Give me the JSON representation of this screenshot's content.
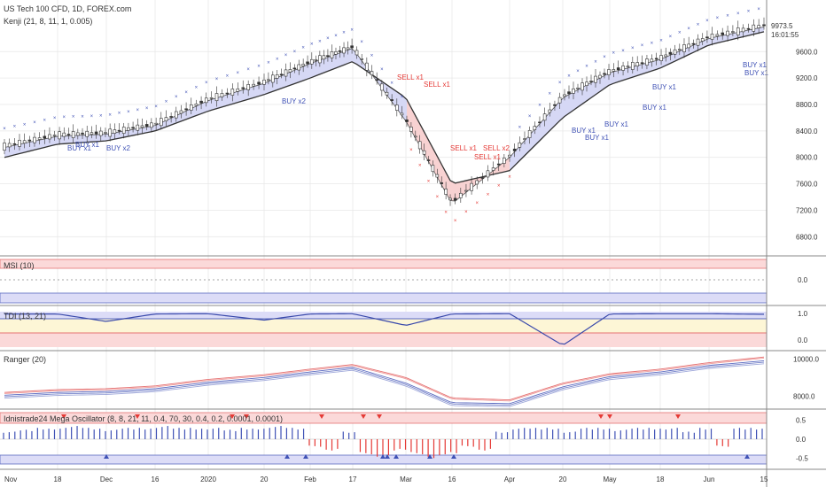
{
  "header": {
    "title": "US Tech 100 CFD, 1D, FOREX.com",
    "indicator": "Kenji (21, 8, 11, 1, 0.005)"
  },
  "price_axis": {
    "last_price": "9973.5",
    "countdown": "16:01:55",
    "last_color": "#3f51b5"
  },
  "colors": {
    "up_marker": "#3f51b5",
    "down_marker": "#e53935",
    "band_fill_up": "#d6d8f5",
    "band_fill_down": "#f8d2d2",
    "grid": "#e8e8e8",
    "separator": "#888888"
  },
  "chart_data": [
    {
      "type": "line",
      "panel": "price",
      "title": "US Tech 100 CFD, 1D, FOREX.com",
      "indicator": "Kenji (21, 8, 11, 1, 0.005)",
      "x": [
        "Nov 1",
        "Nov 18",
        "Dec 2",
        "Dec 16",
        "2020 Jan 2",
        "Jan 20",
        "Feb 3",
        "Feb 17",
        "Mar 2",
        "Mar 16",
        "Apr 1",
        "Apr 20",
        "May 1",
        "May 18",
        "Jun 1",
        "Jun 15"
      ],
      "ylim": [
        6550,
        10300
      ],
      "yticks": [
        6800,
        7200,
        7600,
        8000,
        8400,
        8800,
        9200,
        9600
      ],
      "series": [
        {
          "values": [
            8150,
            8320,
            8350,
            8480,
            8860,
            9120,
            9420,
            9650,
            8550,
            7300,
            8000,
            8900,
            9280,
            9480,
            9800,
            9973.5
          ]
        },
        {
          "values": [
            8000,
            8200,
            8250,
            8400,
            8700,
            8950,
            9200,
            9450,
            8900,
            7600,
            7800,
            8600,
            9100,
            9350,
            9700,
            9900
          ]
        }
      ],
      "annotations": [
        "BUY x1",
        "BUY x1",
        "BUY x2",
        "BUY x2",
        "SELL x1",
        "SELL x1",
        "SELL x1",
        "SELL x2",
        "SELL x1",
        "BUY x1",
        "BUY x1",
        "BUY x1",
        "BUY x1",
        "BUY x1",
        "BUY x1",
        "BUY x1"
      ]
    },
    {
      "type": "line",
      "panel": "msi",
      "title": "MSI (10)",
      "ylim": [
        -1.2,
        1.2
      ],
      "yticks": [
        0.0
      ]
    },
    {
      "type": "line",
      "panel": "tdi",
      "title": "TDI (13, 21)",
      "ylim": [
        -0.3,
        1.2
      ],
      "yticks": [
        1.0,
        0.0
      ],
      "series": [
        {
          "values": [
            0.98,
            0.98,
            0.7,
            0.98,
            0.99,
            0.75,
            0.98,
            0.99,
            0.55,
            0.98,
            0.99,
            -0.2,
            0.98,
            0.99,
            0.99,
            0.97
          ]
        }
      ]
    },
    {
      "type": "line",
      "panel": "ranger",
      "title": "Ranger (20)",
      "ylim": [
        7400,
        10300
      ],
      "yticks": [
        10000.0,
        8000.0
      ],
      "series": [
        {
          "values": [
            8200,
            8350,
            8400,
            8550,
            8900,
            9150,
            9450,
            9700,
            9000,
            7900,
            7800,
            8700,
            9200,
            9450,
            9800,
            10100
          ]
        },
        {
          "values": [
            8050,
            8200,
            8250,
            8400,
            8750,
            9000,
            9300,
            9550,
            8700,
            7650,
            7600,
            8500,
            9050,
            9300,
            9650,
            9900
          ]
        }
      ]
    },
    {
      "type": "bar",
      "panel": "oscillator",
      "title": "Idnistrade24 Mega Oscillator (8, 8, 21, 11, 0.4, 70, 30, 0.4, 0.2, 0.0001, 0.0001)",
      "ylim": [
        -0.75,
        0.75
      ],
      "yticks": [
        0.5,
        0.0,
        -0.5
      ],
      "values": [
        0.2,
        0.25,
        0.3,
        0.3,
        0.35,
        0.3,
        0.25,
        0.3,
        0.3,
        0.35,
        0.3,
        0.3,
        0.3,
        0.25,
        0.3,
        0.3,
        0.35,
        0.3,
        -0.2,
        -0.3,
        0.2,
        -0.4,
        -0.5,
        -0.3,
        -0.4,
        -0.5,
        -0.4,
        -0.2,
        -0.3,
        0.2,
        0.3,
        0.3,
        0.3,
        0.2,
        0.3,
        0.3,
        0.25,
        0.3,
        0.3,
        0.3,
        0.2,
        0.3,
        -0.2,
        0.3,
        0.3
      ]
    }
  ],
  "time_axis": {
    "labels": [
      "Nov",
      "18",
      "Dec",
      "16",
      "2020",
      "20",
      "Feb",
      "17",
      "Mar",
      "16",
      "Apr",
      "20",
      "May",
      "18",
      "Jun",
      "15"
    ]
  }
}
